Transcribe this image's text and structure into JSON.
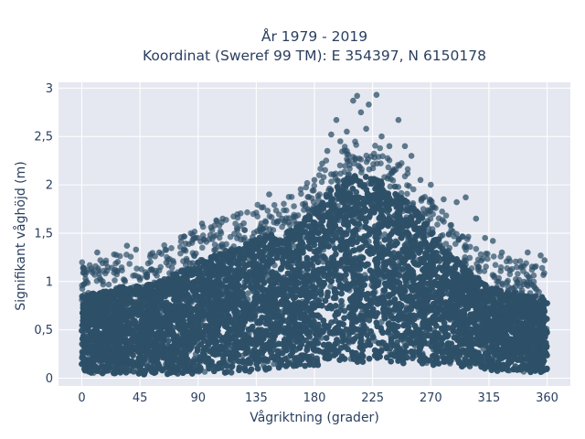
{
  "chart_data": {
    "type": "scatter",
    "title": [
      "År 1979 - 2019",
      "Koordinat (Sweref 99 TM): E 354397, N 6150178"
    ],
    "xlabel": "Vågriktning (grader)",
    "ylabel": "Signifikant våghöjd (m)",
    "xlim": [
      -18,
      378
    ],
    "ylim": [
      -0.08,
      3.06
    ],
    "x_ticks": [
      0,
      45,
      90,
      135,
      180,
      225,
      270,
      315,
      360
    ],
    "x_tick_labels": [
      "0",
      "45",
      "90",
      "135",
      "180",
      "225",
      "270",
      "315",
      "360"
    ],
    "y_ticks": [
      0,
      0.5,
      1,
      1.5,
      2,
      2.5,
      3
    ],
    "y_tick_labels": [
      "0",
      "0,5",
      "1",
      "1,5",
      "2",
      "2,5",
      "3"
    ],
    "grid": true,
    "legend": "none",
    "marker_color": "#2e5068",
    "plot_background": "#e5e8f0",
    "grid_color": "#ffffff",
    "series": [
      {
        "dense_envelope": {
          "x": [
            0,
            10,
            20,
            30,
            45,
            60,
            75,
            90,
            105,
            120,
            135,
            150,
            165,
            180,
            195,
            210,
            225,
            240,
            255,
            270,
            285,
            300,
            315,
            330,
            345,
            360
          ],
          "y_min": [
            0.06,
            0.05,
            0.05,
            0.05,
            0.04,
            0.04,
            0.04,
            0.04,
            0.05,
            0.06,
            0.07,
            0.08,
            0.1,
            0.12,
            0.15,
            0.16,
            0.17,
            0.16,
            0.15,
            0.14,
            0.12,
            0.1,
            0.08,
            0.07,
            0.06,
            0.06
          ],
          "y_max": [
            0.85,
            0.88,
            0.9,
            0.95,
            0.95,
            1.0,
            1.1,
            1.2,
            1.3,
            1.35,
            1.45,
            1.5,
            1.55,
            1.75,
            2.0,
            2.1,
            2.1,
            1.95,
            1.8,
            1.55,
            1.3,
            1.1,
            0.95,
            0.9,
            0.85,
            0.85
          ]
        },
        "outliers": [
          {
            "x": 12,
            "y": 1.3
          },
          {
            "x": 25,
            "y": 1.28
          },
          {
            "x": 35,
            "y": 1.37
          },
          {
            "x": 42,
            "y": 1.33
          },
          {
            "x": 60,
            "y": 1.3
          },
          {
            "x": 88,
            "y": 1.45
          },
          {
            "x": 93,
            "y": 1.6
          },
          {
            "x": 100,
            "y": 1.56
          },
          {
            "x": 120,
            "y": 1.55
          },
          {
            "x": 145,
            "y": 1.9
          },
          {
            "x": 155,
            "y": 1.65
          },
          {
            "x": 175,
            "y": 1.75
          },
          {
            "x": 180,
            "y": 2.05
          },
          {
            "x": 186,
            "y": 2.22
          },
          {
            "x": 190,
            "y": 2.35
          },
          {
            "x": 193,
            "y": 2.52
          },
          {
            "x": 197,
            "y": 2.67
          },
          {
            "x": 200,
            "y": 2.45
          },
          {
            "x": 205,
            "y": 2.55
          },
          {
            "x": 210,
            "y": 2.87
          },
          {
            "x": 213,
            "y": 2.92
          },
          {
            "x": 216,
            "y": 2.75
          },
          {
            "x": 220,
            "y": 2.58
          },
          {
            "x": 222,
            "y": 2.83
          },
          {
            "x": 228,
            "y": 2.93
          },
          {
            "x": 232,
            "y": 2.5
          },
          {
            "x": 238,
            "y": 2.4
          },
          {
            "x": 245,
            "y": 2.67
          },
          {
            "x": 250,
            "y": 2.4
          },
          {
            "x": 255,
            "y": 2.3
          },
          {
            "x": 262,
            "y": 2.05
          },
          {
            "x": 270,
            "y": 2.0
          },
          {
            "x": 280,
            "y": 1.85
          },
          {
            "x": 290,
            "y": 1.82
          },
          {
            "x": 297,
            "y": 1.87
          },
          {
            "x": 305,
            "y": 1.65
          },
          {
            "x": 312,
            "y": 1.45
          },
          {
            "x": 318,
            "y": 1.42
          },
          {
            "x": 325,
            "y": 1.3
          },
          {
            "x": 345,
            "y": 1.3
          },
          {
            "x": 355,
            "y": 1.27
          },
          {
            "x": 358,
            "y": 1.22
          }
        ]
      }
    ]
  }
}
